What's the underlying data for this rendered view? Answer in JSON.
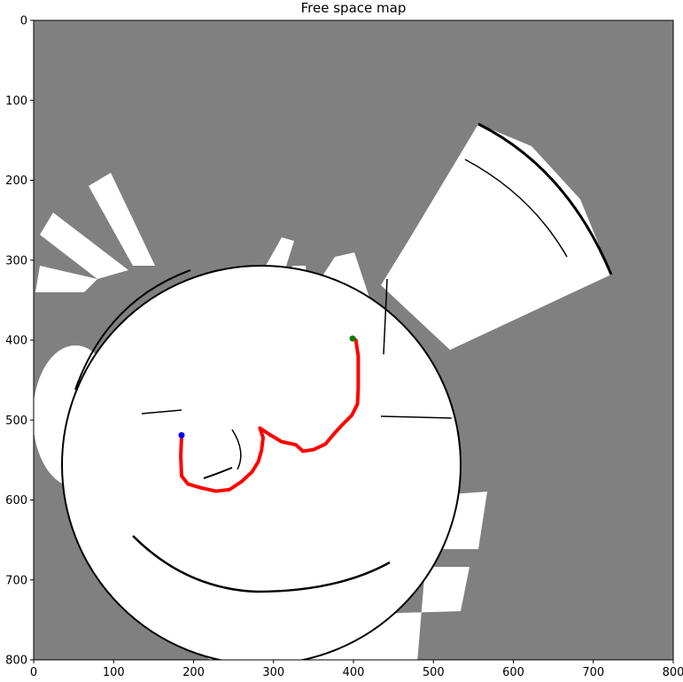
{
  "chart_data": {
    "type": "image-map",
    "title": "Free space map",
    "xlim": [
      0,
      800
    ],
    "ylim": [
      800,
      0
    ],
    "x_ticks": [
      0,
      100,
      200,
      300,
      400,
      500,
      600,
      700,
      800
    ],
    "y_ticks": [
      0,
      100,
      200,
      300,
      400,
      500,
      600,
      700,
      800
    ],
    "colors": {
      "unknown": "#808080",
      "free": "#ffffff",
      "obstacle": "#000000",
      "path": "#ff0000",
      "start": "#0000ff",
      "goal": "#008000"
    },
    "path": {
      "points": [
        [
          185,
          520
        ],
        [
          184,
          545
        ],
        [
          185,
          570
        ],
        [
          193,
          580
        ],
        [
          210,
          585
        ],
        [
          228,
          589
        ],
        [
          245,
          587
        ],
        [
          260,
          577
        ],
        [
          273,
          565
        ],
        [
          281,
          552
        ],
        [
          285,
          538
        ],
        [
          287,
          522
        ],
        [
          283,
          510
        ],
        [
          295,
          518
        ],
        [
          310,
          527
        ],
        [
          328,
          531
        ],
        [
          337,
          539
        ],
        [
          350,
          537
        ],
        [
          365,
          530
        ],
        [
          375,
          518
        ],
        [
          385,
          507
        ],
        [
          398,
          494
        ],
        [
          405,
          480
        ],
        [
          406,
          460
        ],
        [
          406,
          440
        ],
        [
          406,
          420
        ],
        [
          403,
          400
        ],
        [
          400,
          398
        ]
      ]
    },
    "start_marker": [
      185,
      519
    ],
    "goal_marker": [
      399,
      398
    ]
  }
}
